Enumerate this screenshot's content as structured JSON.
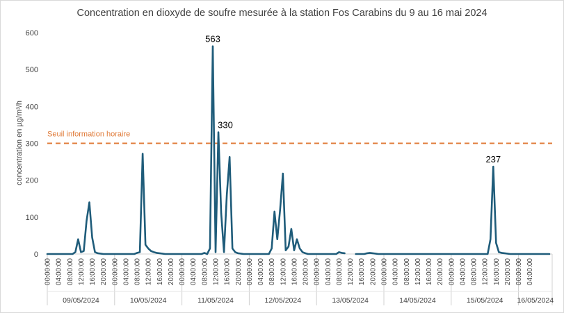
{
  "chart_data": {
    "type": "line",
    "title": "Concentration en dioxyde de soufre mesurée à la station Fos Carabins du 9 au 16 mai 2024",
    "ylabel": "concentration en µg/m³/h",
    "xlabel": "",
    "ylim": [
      0,
      600
    ],
    "yticks": [
      0,
      100,
      200,
      300,
      400,
      500,
      600
    ],
    "grid": false,
    "x_hour_ticks": [
      "00:00:00",
      "04:00:00",
      "08:00:00",
      "12:00:00",
      "16:00:00",
      "20:00:00",
      "00:00:00",
      "04:00:00",
      "08:00:00",
      "12:00:00",
      "16:00:00",
      "20:00:00",
      "00:00:00",
      "04:00:00",
      "08:00:00",
      "12:00:00",
      "16:00:00",
      "20:00:00",
      "00:00:00",
      "04:00:00",
      "08:00:00",
      "12:00:00",
      "16:00:00",
      "20:00:00",
      "00:00:00",
      "04:00:00",
      "08:00:00",
      "12:00:00",
      "16:00:00",
      "20:00:00",
      "00:00:00",
      "04:00:00",
      "08:00:00",
      "12:00:00",
      "16:00:00",
      "20:00:00",
      "00:00:00",
      "04:00:00",
      "08:00:00",
      "12:00:00",
      "16:00:00",
      "20:00:00",
      "00:00:00",
      "04:00:00"
    ],
    "days": [
      "09/05/2024",
      "10/05/2024",
      "11/05/2024",
      "12/05/2024",
      "13/05/2024",
      "14/05/2024",
      "15/05/2024",
      "16/05/2024"
    ],
    "threshold": {
      "label": "Seuil information horaire",
      "value": 300,
      "color": "#e07b39"
    },
    "series": [
      {
        "color": "#1f5c7a",
        "segments": [
          [
            [
              0,
              0
            ],
            [
              1,
              0
            ],
            [
              2,
              0
            ],
            [
              3,
              0
            ],
            [
              4,
              0
            ],
            [
              5,
              0
            ],
            [
              6,
              0
            ],
            [
              7,
              0
            ],
            [
              8,
              0
            ],
            [
              9,
              0
            ],
            [
              10,
              5
            ],
            [
              11,
              40
            ],
            [
              12,
              5
            ],
            [
              13,
              8
            ],
            [
              14,
              90
            ],
            [
              15,
              140
            ],
            [
              16,
              45
            ],
            [
              17,
              5
            ],
            [
              18,
              2
            ],
            [
              19,
              1
            ],
            [
              20,
              0
            ],
            [
              21,
              0
            ],
            [
              22,
              0
            ],
            [
              23,
              0
            ],
            [
              24,
              0
            ],
            [
              25,
              0
            ],
            [
              26,
              0
            ],
            [
              27,
              0
            ],
            [
              28,
              0
            ],
            [
              29,
              0
            ],
            [
              30,
              0
            ],
            [
              31,
              0
            ],
            [
              32,
              3
            ],
            [
              33,
              5
            ],
            [
              34,
              272
            ],
            [
              35,
              25
            ],
            [
              36,
              15
            ],
            [
              37,
              8
            ],
            [
              38,
              5
            ],
            [
              39,
              3
            ],
            [
              40,
              2
            ],
            [
              41,
              1
            ],
            [
              42,
              0
            ],
            [
              43,
              0
            ],
            [
              44,
              0
            ],
            [
              45,
              0
            ],
            [
              46,
              0
            ],
            [
              47,
              0
            ],
            [
              48,
              0
            ],
            [
              49,
              0
            ],
            [
              50,
              0
            ],
            [
              51,
              0
            ],
            [
              52,
              0
            ],
            [
              53,
              0
            ],
            [
              54,
              0
            ],
            [
              55,
              0
            ],
            [
              56,
              3
            ],
            [
              57,
              0
            ],
            [
              58,
              15
            ],
            [
              59,
              563
            ],
            [
              60,
              5
            ],
            [
              61,
              330
            ],
            [
              62,
              110
            ],
            [
              63,
              5
            ],
            [
              64,
              160
            ],
            [
              65,
              263
            ],
            [
              66,
              15
            ],
            [
              67,
              5
            ],
            [
              68,
              2
            ],
            [
              69,
              1
            ],
            [
              70,
              0
            ],
            [
              71,
              0
            ],
            [
              72,
              0
            ],
            [
              73,
              0
            ],
            [
              74,
              0
            ],
            [
              75,
              0
            ],
            [
              76,
              0
            ],
            [
              77,
              0
            ],
            [
              78,
              0
            ],
            [
              79,
              0
            ],
            [
              80,
              15
            ],
            [
              81,
              115
            ],
            [
              82,
              40
            ],
            [
              83,
              120
            ],
            [
              84,
              218
            ],
            [
              85,
              10
            ],
            [
              86,
              20
            ],
            [
              87,
              68
            ],
            [
              88,
              10
            ],
            [
              89,
              40
            ],
            [
              90,
              15
            ],
            [
              91,
              5
            ],
            [
              92,
              2
            ],
            [
              93,
              0
            ],
            [
              94,
              0
            ],
            [
              95,
              0
            ],
            [
              96,
              0
            ],
            [
              97,
              0
            ],
            [
              98,
              0
            ],
            [
              99,
              0
            ],
            [
              100,
              0
            ],
            [
              101,
              0
            ],
            [
              102,
              0
            ],
            [
              103,
              0
            ],
            [
              104,
              5
            ],
            [
              105,
              3
            ],
            [
              106,
              2
            ]
          ],
          [
            [
              110,
              0
            ],
            [
              111,
              0
            ],
            [
              112,
              0
            ],
            [
              113,
              0
            ],
            [
              114,
              2
            ],
            [
              115,
              3
            ],
            [
              116,
              2
            ],
            [
              117,
              1
            ],
            [
              118,
              0
            ],
            [
              119,
              0
            ],
            [
              120,
              0
            ],
            [
              121,
              0
            ],
            [
              122,
              0
            ],
            [
              123,
              0
            ],
            [
              124,
              0
            ],
            [
              125,
              0
            ],
            [
              126,
              0
            ],
            [
              127,
              0
            ],
            [
              128,
              0
            ],
            [
              129,
              0
            ],
            [
              130,
              0
            ],
            [
              131,
              0
            ],
            [
              132,
              0
            ],
            [
              133,
              0
            ],
            [
              134,
              0
            ],
            [
              135,
              0
            ],
            [
              136,
              0
            ],
            [
              137,
              0
            ],
            [
              138,
              0
            ],
            [
              139,
              0
            ],
            [
              140,
              0
            ],
            [
              141,
              0
            ],
            [
              142,
              0
            ],
            [
              143,
              0
            ],
            [
              144,
              0
            ],
            [
              145,
              0
            ],
            [
              146,
              0
            ],
            [
              147,
              0
            ],
            [
              148,
              0
            ],
            [
              149,
              0
            ],
            [
              150,
              0
            ],
            [
              151,
              0
            ],
            [
              152,
              0
            ],
            [
              153,
              0
            ],
            [
              154,
              0
            ],
            [
              155,
              0
            ],
            [
              156,
              0
            ],
            [
              157,
              0
            ],
            [
              158,
              40
            ],
            [
              159,
              237
            ],
            [
              160,
              30
            ],
            [
              161,
              5
            ],
            [
              162,
              3
            ],
            [
              163,
              2
            ],
            [
              164,
              1
            ],
            [
              165,
              0
            ],
            [
              166,
              0
            ],
            [
              167,
              0
            ],
            [
              168,
              0
            ],
            [
              169,
              0
            ],
            [
              170,
              0
            ],
            [
              171,
              0
            ],
            [
              172,
              0
            ],
            [
              173,
              0
            ],
            [
              174,
              0
            ],
            [
              175,
              0
            ],
            [
              176,
              0
            ],
            [
              177,
              0
            ],
            [
              178,
              0
            ],
            [
              179,
              0
            ]
          ]
        ]
      }
    ],
    "annotations": [
      {
        "text": "563",
        "x": 59,
        "y": 563
      },
      {
        "text": "330",
        "x": 61,
        "y": 330
      },
      {
        "text": "237",
        "x": 159,
        "y": 237
      }
    ]
  }
}
